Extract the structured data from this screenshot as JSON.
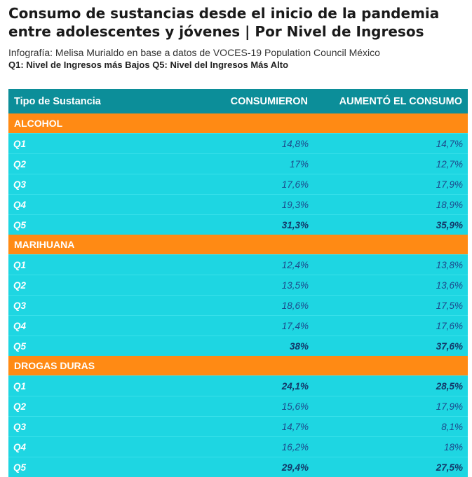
{
  "title": "Consumo de sustancias desde el inicio de la pandemia entre adolescentes y jóvenes | Por Nivel de Ingresos",
  "subtitle": "Infografía: Melisa Murialdo en base a datos de VOCES-19 Population Council México",
  "legend_note": "Q1: Nivel de Ingresos más Bajos Q5: Nivel del Ingresos Más Alto",
  "colors": {
    "header": "#0c8e99",
    "section": "#ff8a14",
    "row": "#1ed6e2",
    "value_text": "#1d4a8c"
  },
  "chart_data": {
    "type": "table",
    "columns": [
      "Tipo de Sustancia",
      "CONSUMIERON",
      "AUMENTÓ EL CONSUMO"
    ],
    "sections": [
      {
        "name": "ALCOHOL",
        "rows": [
          {
            "label": "Q1",
            "consumieron": "14,8%",
            "aumento": "14,7%"
          },
          {
            "label": "Q2",
            "consumieron": "17%",
            "aumento": "12,7%"
          },
          {
            "label": "Q3",
            "consumieron": "17,6%",
            "aumento": "17,9%"
          },
          {
            "label": "Q4",
            "consumieron": "19,3%",
            "aumento": "18,9%"
          },
          {
            "label": "Q5",
            "consumieron": "31,3%",
            "aumento": "35,9%",
            "highlight": true
          }
        ]
      },
      {
        "name": "MARIHUANA",
        "rows": [
          {
            "label": "Q1",
            "consumieron": "12,4%",
            "aumento": "13,8%"
          },
          {
            "label": "Q2",
            "consumieron": "13,5%",
            "aumento": "13,6%"
          },
          {
            "label": "Q3",
            "consumieron": "18,6%",
            "aumento": "17,5%"
          },
          {
            "label": "Q4",
            "consumieron": "17,4%",
            "aumento": "17,6%"
          },
          {
            "label": "Q5",
            "consumieron": "38%",
            "aumento": "37,6%",
            "highlight": true
          }
        ]
      },
      {
        "name": "DROGAS DURAS",
        "rows": [
          {
            "label": "Q1",
            "consumieron": "24,1%",
            "aumento": "28,5%",
            "highlight": true
          },
          {
            "label": "Q2",
            "consumieron": "15,6%",
            "aumento": "17,9%"
          },
          {
            "label": "Q3",
            "consumieron": "14,7%",
            "aumento": "8,1%"
          },
          {
            "label": "Q4",
            "consumieron": "16,2%",
            "aumento": "18%"
          },
          {
            "label": "Q5",
            "consumieron": "29,4%",
            "aumento": "27,5%",
            "highlight": true
          }
        ]
      }
    ]
  }
}
